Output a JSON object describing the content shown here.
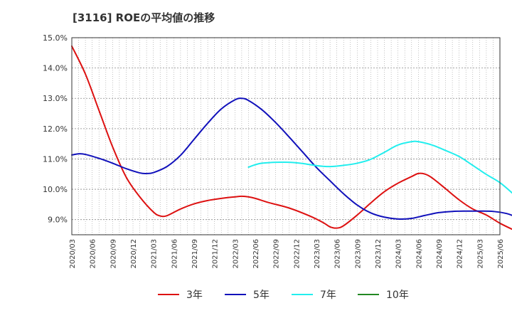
{
  "chart_data": {
    "type": "line",
    "title": "[3116]  ROEの平均値の推移",
    "xlabel": "",
    "ylabel": "",
    "ylim": [
      8.5,
      15.0
    ],
    "yticks": [
      9.0,
      10.0,
      11.0,
      12.0,
      13.0,
      14.0,
      15.0
    ],
    "ytick_labels": [
      "9.0%",
      "10.0%",
      "11.0%",
      "12.0%",
      "13.0%",
      "14.0%",
      "15.0%"
    ],
    "x_start": "2020/03",
    "x_months_total": 63,
    "xtick_labels": [
      "2020/03",
      "2020/06",
      "2020/09",
      "2020/12",
      "2021/03",
      "2021/06",
      "2021/09",
      "2021/12",
      "2022/03",
      "2022/06",
      "2022/09",
      "2022/12",
      "2023/03",
      "2023/06",
      "2023/09",
      "2023/12",
      "2024/03",
      "2024/06",
      "2024/09",
      "2024/12",
      "2025/03",
      "2025/06"
    ],
    "grid": true,
    "legend_position": "bottom",
    "series": [
      {
        "name": "3年",
        "color": "#dd1111",
        "points": [
          [
            0,
            14.72
          ],
          [
            2,
            13.8
          ],
          [
            4,
            12.6
          ],
          [
            6,
            11.4
          ],
          [
            8,
            10.4
          ],
          [
            10,
            9.75
          ],
          [
            12,
            9.25
          ],
          [
            13,
            9.12
          ],
          [
            14,
            9.13
          ],
          [
            16,
            9.35
          ],
          [
            18,
            9.52
          ],
          [
            20,
            9.63
          ],
          [
            22,
            9.7
          ],
          [
            24,
            9.75
          ],
          [
            25,
            9.77
          ],
          [
            26,
            9.75
          ],
          [
            27,
            9.7
          ],
          [
            29,
            9.56
          ],
          [
            32,
            9.38
          ],
          [
            35,
            9.12
          ],
          [
            37,
            8.9
          ],
          [
            38,
            8.76
          ],
          [
            39,
            8.72
          ],
          [
            40,
            8.8
          ],
          [
            42,
            9.15
          ],
          [
            44,
            9.55
          ],
          [
            46,
            9.92
          ],
          [
            48,
            10.2
          ],
          [
            50,
            10.42
          ],
          [
            51,
            10.52
          ],
          [
            52,
            10.5
          ],
          [
            53,
            10.38
          ],
          [
            55,
            10.02
          ],
          [
            57,
            9.65
          ],
          [
            59,
            9.35
          ],
          [
            61,
            9.15
          ],
          [
            63,
            8.88
          ],
          [
            65,
            8.66
          ]
        ]
      },
      {
        "name": "5年",
        "color": "#1111bb",
        "points": [
          [
            0,
            11.13
          ],
          [
            1,
            11.17
          ],
          [
            2,
            11.15
          ],
          [
            4,
            11.02
          ],
          [
            6,
            10.86
          ],
          [
            8,
            10.68
          ],
          [
            10,
            10.54
          ],
          [
            11,
            10.52
          ],
          [
            12,
            10.55
          ],
          [
            14,
            10.75
          ],
          [
            16,
            11.12
          ],
          [
            18,
            11.65
          ],
          [
            20,
            12.18
          ],
          [
            22,
            12.65
          ],
          [
            24,
            12.95
          ],
          [
            25,
            13.0
          ],
          [
            26,
            12.93
          ],
          [
            28,
            12.62
          ],
          [
            30,
            12.2
          ],
          [
            32,
            11.72
          ],
          [
            34,
            11.22
          ],
          [
            36,
            10.72
          ],
          [
            38,
            10.28
          ],
          [
            40,
            9.85
          ],
          [
            42,
            9.48
          ],
          [
            44,
            9.22
          ],
          [
            46,
            9.08
          ],
          [
            48,
            9.02
          ],
          [
            50,
            9.04
          ],
          [
            52,
            9.14
          ],
          [
            54,
            9.23
          ],
          [
            56,
            9.27
          ],
          [
            58,
            9.28
          ],
          [
            60,
            9.28
          ],
          [
            62,
            9.27
          ],
          [
            64,
            9.2
          ],
          [
            65,
            9.12
          ]
        ]
      },
      {
        "name": "7年",
        "color": "#22eeee",
        "points": [
          [
            26,
            10.73
          ],
          [
            27,
            10.81
          ],
          [
            28,
            10.86
          ],
          [
            30,
            10.89
          ],
          [
            32,
            10.89
          ],
          [
            34,
            10.85
          ],
          [
            36,
            10.78
          ],
          [
            38,
            10.75
          ],
          [
            40,
            10.79
          ],
          [
            42,
            10.86
          ],
          [
            44,
            10.99
          ],
          [
            46,
            11.22
          ],
          [
            48,
            11.46
          ],
          [
            50,
            11.57
          ],
          [
            51,
            11.57
          ],
          [
            53,
            11.46
          ],
          [
            55,
            11.28
          ],
          [
            57,
            11.08
          ],
          [
            59,
            10.79
          ],
          [
            61,
            10.49
          ],
          [
            63,
            10.22
          ],
          [
            65,
            9.84
          ]
        ]
      },
      {
        "name": "10年",
        "color": "#228822",
        "points": []
      }
    ]
  }
}
